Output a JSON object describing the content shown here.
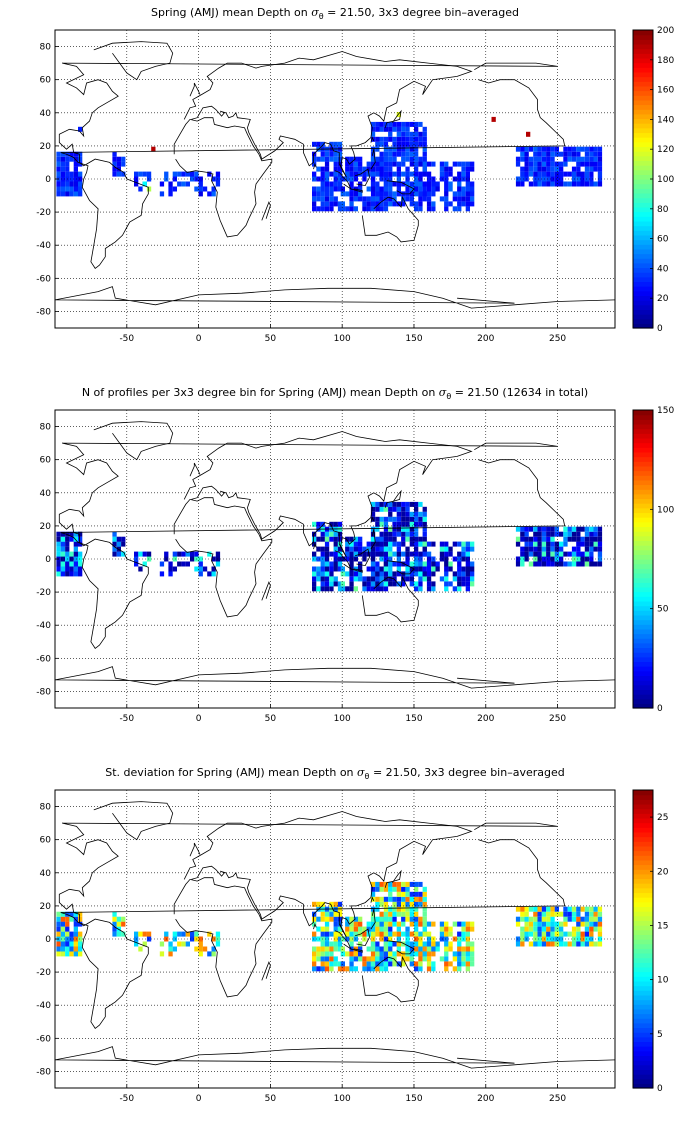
{
  "panels": [
    {
      "title_pre": "Spring (AMJ) mean Depth on ",
      "sigma": "σ",
      "sigma_sub": "θ",
      "title_post": " = 21.50, 3x3 degree bin–averaged",
      "colorbar": {
        "ticks": [
          "0",
          "20",
          "40",
          "60",
          "80",
          "100",
          "120",
          "140",
          "160",
          "180",
          "200"
        ],
        "min": 0,
        "max": 200
      }
    },
    {
      "title_pre": "N of profiles per 3x3 degree bin for Spring (AMJ) mean Depth on ",
      "sigma": "σ",
      "sigma_sub": "θ",
      "title_post": " = 21.50 (12634 in total)",
      "colorbar": {
        "ticks": [
          "0",
          "50",
          "100",
          "150"
        ],
        "min": 0,
        "max": 150
      }
    },
    {
      "title_pre": "St. deviation for Spring (AMJ) mean Depth on ",
      "sigma": "σ",
      "sigma_sub": "θ",
      "title_post": " = 21.50, 3x3 degree bin–averaged",
      "colorbar": {
        "ticks": [
          "0",
          "5",
          "10",
          "15",
          "20",
          "25"
        ],
        "min": 0,
        "max": 27.5
      }
    }
  ],
  "axes": {
    "x_ticks": [
      "-50",
      "0",
      "50",
      "100",
      "150",
      "200",
      "250"
    ],
    "y_ticks": [
      "80",
      "60",
      "40",
      "20",
      "0",
      "-20",
      "-40",
      "-60",
      "-80"
    ],
    "xlim": [
      -100,
      290
    ],
    "ylim": [
      -90,
      90
    ],
    "grid": "dotted"
  },
  "colormap": "jet",
  "colors": {
    "land_outline": "#000000",
    "ocean": "#ffffff"
  }
}
